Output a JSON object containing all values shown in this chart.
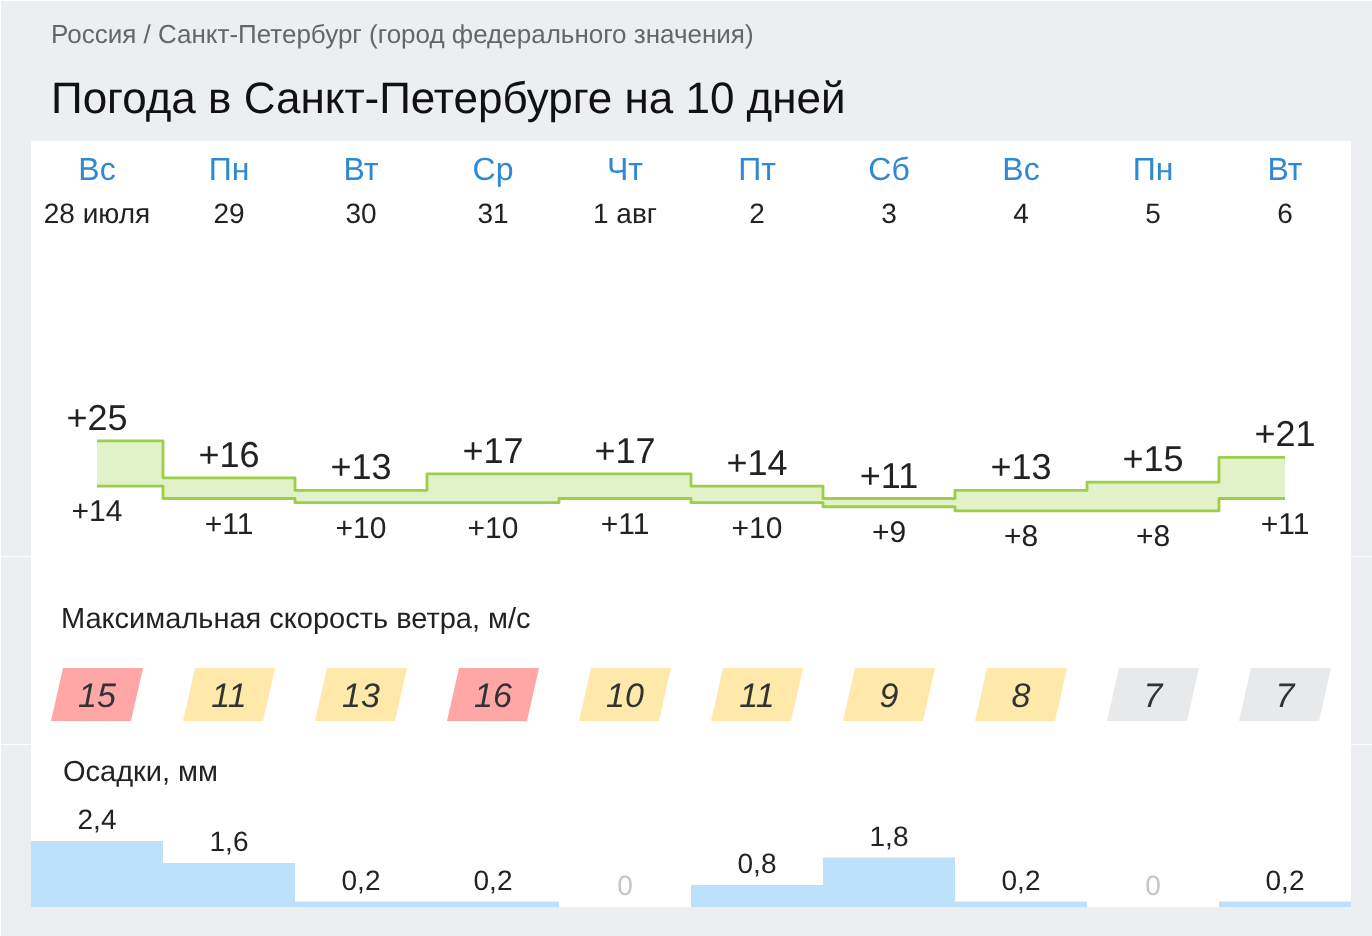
{
  "chart_data": [
    {
      "type": "step",
      "title": "Погода в Санкт-Петербурге на 10 дней",
      "annotations": [
        "Россия / Санкт-Петербург (город федерального значения)"
      ],
      "tick_labels": "x",
      "categories": [
        "Вс\n28 июля",
        "Пн\n29",
        "Вт\n30",
        "Ср\n31",
        "Чт\n1 авг",
        "Пт\n2",
        "Сб\n3",
        "Вс\n4",
        "Пн\n5",
        "Вт\n6"
      ],
      "series": [
        {
          "color": "#9ccf47",
          "values": [
            25,
            16,
            13,
            17,
            17,
            14,
            11,
            13,
            15,
            21
          ],
          "value_labels": [
            "+25",
            "+16",
            "+13",
            "+17",
            "+17",
            "+14",
            "+11",
            "+13",
            "+15",
            "+21"
          ],
          "lower": [
            14,
            11,
            10,
            10,
            11,
            10,
            9,
            8,
            8,
            11
          ],
          "upper": [
            25,
            16,
            13,
            17,
            17,
            14,
            11,
            13,
            15,
            21
          ]
        },
        {
          "color": "#9ccf47",
          "values": [
            14,
            11,
            10,
            10,
            11,
            10,
            9,
            8,
            8,
            11
          ],
          "value_labels": [
            "+14",
            "+11",
            "+10",
            "+10",
            "+11",
            "+10",
            "+9",
            "+8",
            "+8",
            "+11"
          ]
        }
      ]
    },
    {
      "type": "heatmap",
      "title": "Максимальная скорость ветра, м/с",
      "tick_labels": false,
      "data_labels": true,
      "categories": [
        null,
        null,
        null,
        null,
        null,
        null,
        null,
        null,
        null,
        null
      ],
      "y_categories": [
        null
      ],
      "cells": [
        [
          15,
          11,
          13,
          16,
          10,
          11,
          9,
          8,
          7,
          7
        ]
      ],
      "colors": [
        "#ffa6a6",
        "#ffe9aa",
        "#ffe9aa",
        "#ffa6a6",
        "#ffe9aa",
        "#ffe9aa",
        "#ffe9aa",
        "#ffe9aa",
        "#e8e9eb",
        "#e8e9eb"
      ]
    },
    {
      "type": "bar",
      "title": "Осадки, мм",
      "tick_labels": false,
      "color": "#bde0fb",
      "categories": [
        null,
        null,
        null,
        null,
        null,
        null,
        null,
        null,
        null,
        null
      ],
      "values": [
        2.4,
        1.6,
        0.2,
        0.2,
        0,
        0.8,
        1.8,
        0.2,
        0,
        0.2
      ],
      "value_labels": [
        "2,4",
        "1,6",
        "0,2",
        "0,2",
        "0",
        "0,8",
        "1,8",
        "0,2",
        "0",
        "0,2"
      ]
    }
  ]
}
